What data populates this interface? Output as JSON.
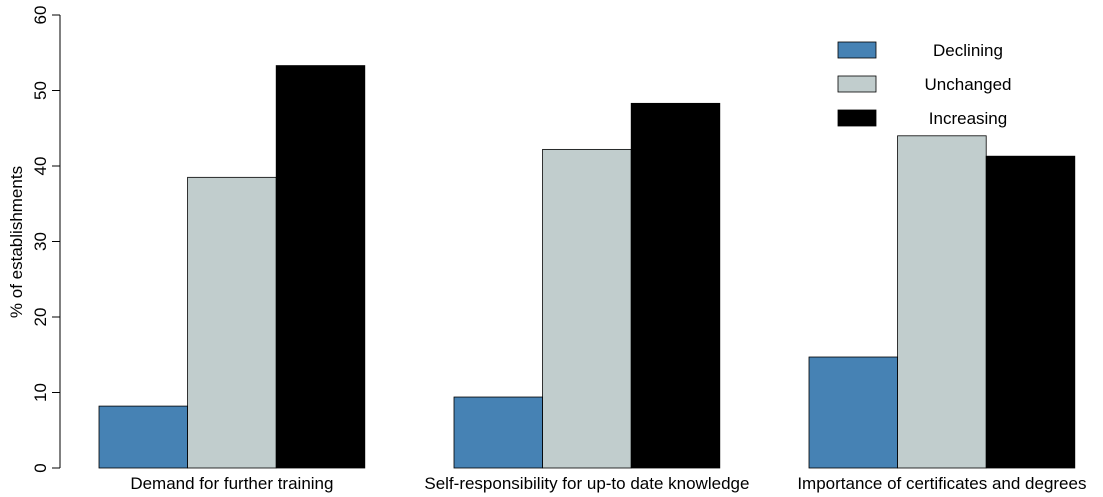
{
  "chart_data": {
    "type": "bar",
    "title": "",
    "xlabel": "",
    "ylabel": "% of establishments",
    "ylim": [
      0,
      60
    ],
    "yticks": [
      0,
      10,
      20,
      30,
      40,
      50,
      60
    ],
    "grid": false,
    "legend_position": "top-right",
    "categories": [
      "Demand for further training",
      "Self-responsibility for up-to date knowledge",
      "Importance of certificates and degrees"
    ],
    "series": [
      {
        "name": "Declining",
        "color": "#4682b4",
        "values": [
          8.2,
          9.4,
          14.7
        ]
      },
      {
        "name": "Unchanged",
        "color": "#c1cdcd",
        "values": [
          38.5,
          42.2,
          44.0
        ]
      },
      {
        "name": "Increasing",
        "color": "#000000",
        "values": [
          53.3,
          48.3,
          41.3
        ]
      }
    ]
  }
}
